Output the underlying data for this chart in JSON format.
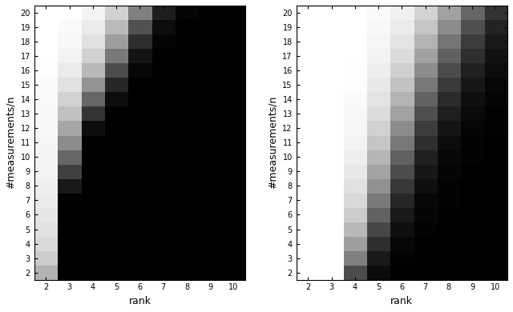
{
  "ranks": [
    2,
    3,
    4,
    5,
    6,
    7,
    8,
    9,
    10
  ],
  "measurements": [
    2,
    3,
    4,
    5,
    6,
    7,
    8,
    9,
    10,
    11,
    12,
    13,
    14,
    15,
    16,
    17,
    18,
    19,
    20
  ],
  "xlabel": "rank",
  "ylabel": "#measurements/n",
  "cmap": "gray",
  "left_data": [
    [
      0.7,
      0.0,
      0.0,
      0.0,
      0.0,
      0.0,
      0.0,
      0.0,
      0.0
    ],
    [
      0.8,
      0.0,
      0.0,
      0.0,
      0.0,
      0.0,
      0.0,
      0.0,
      0.0
    ],
    [
      0.85,
      0.0,
      0.0,
      0.0,
      0.0,
      0.0,
      0.0,
      0.0,
      0.0
    ],
    [
      0.88,
      0.0,
      0.0,
      0.0,
      0.0,
      0.0,
      0.0,
      0.0,
      0.0
    ],
    [
      0.9,
      0.0,
      0.0,
      0.0,
      0.0,
      0.0,
      0.0,
      0.0,
      0.0
    ],
    [
      0.92,
      0.0,
      0.0,
      0.0,
      0.0,
      0.0,
      0.0,
      0.0,
      0.0
    ],
    [
      0.93,
      0.1,
      0.0,
      0.0,
      0.0,
      0.0,
      0.0,
      0.0,
      0.0
    ],
    [
      0.95,
      0.25,
      0.0,
      0.0,
      0.0,
      0.0,
      0.0,
      0.0,
      0.0
    ],
    [
      0.95,
      0.4,
      0.0,
      0.0,
      0.0,
      0.0,
      0.0,
      0.0,
      0.0
    ],
    [
      0.96,
      0.55,
      0.0,
      0.0,
      0.0,
      0.0,
      0.0,
      0.0,
      0.0
    ],
    [
      0.97,
      0.65,
      0.05,
      0.0,
      0.0,
      0.0,
      0.0,
      0.0,
      0.0
    ],
    [
      0.97,
      0.75,
      0.2,
      0.0,
      0.0,
      0.0,
      0.0,
      0.0,
      0.0
    ],
    [
      0.98,
      0.82,
      0.4,
      0.05,
      0.0,
      0.0,
      0.0,
      0.0,
      0.0
    ],
    [
      0.98,
      0.88,
      0.58,
      0.15,
      0.0,
      0.0,
      0.0,
      0.0,
      0.0
    ],
    [
      0.99,
      0.92,
      0.72,
      0.3,
      0.03,
      0.0,
      0.0,
      0.0,
      0.0
    ],
    [
      1.0,
      0.95,
      0.82,
      0.48,
      0.08,
      0.0,
      0.0,
      0.0,
      0.0
    ],
    [
      1.0,
      0.97,
      0.88,
      0.62,
      0.18,
      0.02,
      0.0,
      0.0,
      0.0
    ],
    [
      1.0,
      0.98,
      0.92,
      0.73,
      0.32,
      0.05,
      0.0,
      0.0,
      0.0
    ],
    [
      1.0,
      1.0,
      0.95,
      0.82,
      0.5,
      0.12,
      0.02,
      0.0,
      0.0
    ]
  ],
  "right_data": [
    [
      1.0,
      1.0,
      0.3,
      0.05,
      0.0,
      0.0,
      0.0,
      0.0,
      0.0
    ],
    [
      1.0,
      1.0,
      0.5,
      0.1,
      0.01,
      0.0,
      0.0,
      0.0,
      0.0
    ],
    [
      1.0,
      1.0,
      0.62,
      0.18,
      0.03,
      0.0,
      0.0,
      0.0,
      0.0
    ],
    [
      1.0,
      1.0,
      0.72,
      0.28,
      0.06,
      0.01,
      0.0,
      0.0,
      0.0
    ],
    [
      1.0,
      1.0,
      0.8,
      0.38,
      0.1,
      0.02,
      0.0,
      0.0,
      0.0
    ],
    [
      1.0,
      1.0,
      0.85,
      0.48,
      0.15,
      0.03,
      0.01,
      0.0,
      0.0
    ],
    [
      1.0,
      1.0,
      0.88,
      0.57,
      0.22,
      0.06,
      0.01,
      0.0,
      0.0
    ],
    [
      1.0,
      1.0,
      0.91,
      0.64,
      0.3,
      0.09,
      0.02,
      0.0,
      0.0
    ],
    [
      1.0,
      1.0,
      0.93,
      0.71,
      0.38,
      0.13,
      0.03,
      0.01,
      0.0
    ],
    [
      1.0,
      1.0,
      0.95,
      0.77,
      0.47,
      0.18,
      0.05,
      0.01,
      0.0
    ],
    [
      1.0,
      1.0,
      0.96,
      0.82,
      0.55,
      0.24,
      0.08,
      0.02,
      0.01
    ],
    [
      1.0,
      1.0,
      0.97,
      0.86,
      0.63,
      0.31,
      0.12,
      0.04,
      0.01
    ],
    [
      1.0,
      1.0,
      0.98,
      0.89,
      0.7,
      0.39,
      0.17,
      0.06,
      0.02
    ],
    [
      1.0,
      1.0,
      0.99,
      0.91,
      0.76,
      0.47,
      0.23,
      0.09,
      0.03
    ],
    [
      1.0,
      1.0,
      0.99,
      0.93,
      0.81,
      0.55,
      0.3,
      0.13,
      0.05
    ],
    [
      1.0,
      1.0,
      1.0,
      0.95,
      0.86,
      0.63,
      0.38,
      0.18,
      0.07
    ],
    [
      1.0,
      1.0,
      1.0,
      0.96,
      0.89,
      0.7,
      0.46,
      0.24,
      0.1
    ],
    [
      1.0,
      1.0,
      1.0,
      0.97,
      0.92,
      0.77,
      0.55,
      0.31,
      0.14
    ],
    [
      1.0,
      1.0,
      1.0,
      0.98,
      0.94,
      0.83,
      0.63,
      0.4,
      0.2
    ]
  ]
}
